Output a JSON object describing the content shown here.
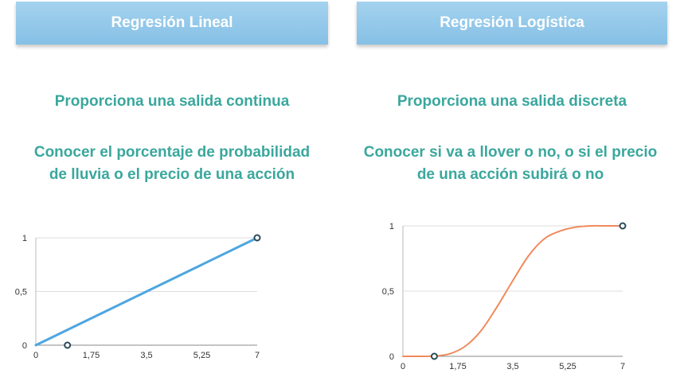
{
  "headers": {
    "left": "Regresión Lineal",
    "right": "Regresión Logística"
  },
  "left": {
    "output": "Proporciona una salida continua",
    "example_line1": "Conocer el porcentaje de probabilidad",
    "example_line2": "de lluvia o el precio de una acción"
  },
  "right": {
    "output": "Proporciona una salida discreta",
    "example_line1": "Conocer si va a llover o no, o si el precio",
    "example_line2": "de una acción subirá o no"
  },
  "colors": {
    "header_blue": "#8fc6e9",
    "teal_text": "#3aa79d",
    "linear_line": "#4da6e0",
    "sigmoid_line": "#f08a5d"
  },
  "chart_data": [
    {
      "type": "line",
      "series": [
        {
          "x": [
            0,
            7
          ],
          "y": [
            0,
            1
          ]
        }
      ],
      "markers": [
        {
          "x": 1,
          "y": 0
        },
        {
          "x": 7,
          "y": 1
        }
      ],
      "x_ticks": [
        "0",
        "1,75",
        "3,5",
        "5,25",
        "7"
      ],
      "y_ticks": [
        "0",
        "0,5",
        "1"
      ],
      "xlim": [
        0,
        7
      ],
      "ylim": [
        0,
        1
      ],
      "grid": true
    },
    {
      "type": "line",
      "series": [
        {
          "x": [
            0,
            0.5,
            1,
            1.5,
            2,
            2.5,
            3,
            3.5,
            4,
            4.5,
            5,
            5.5,
            6,
            6.5,
            7
          ],
          "y": [
            0,
            0,
            0.002,
            0.02,
            0.08,
            0.2,
            0.38,
            0.58,
            0.77,
            0.9,
            0.96,
            0.99,
            1,
            1,
            1
          ]
        }
      ],
      "markers": [
        {
          "x": 1,
          "y": 0
        },
        {
          "x": 7,
          "y": 1
        }
      ],
      "x_ticks": [
        "0",
        "1,75",
        "3,5",
        "5,25",
        "7"
      ],
      "y_ticks": [
        "0",
        "0,5",
        "1"
      ],
      "xlim": [
        0,
        7
      ],
      "ylim": [
        0,
        1
      ],
      "grid": true
    }
  ]
}
